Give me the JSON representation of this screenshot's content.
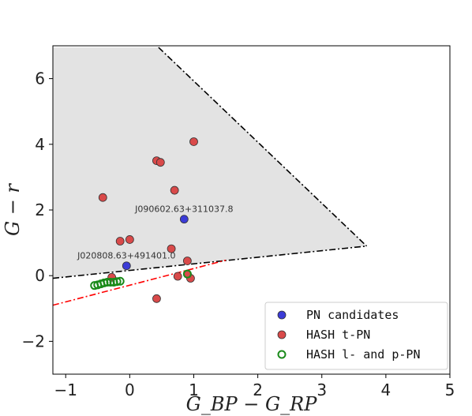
{
  "chart_data": {
    "type": "scatter",
    "xlabel": "G_BP − G_RP",
    "ylabel": "G − r",
    "xlim": [
      -1.2,
      5.0
    ],
    "ylim": [
      -3.0,
      7.0
    ],
    "xticks": [
      "−1",
      "0",
      "1",
      "2",
      "3",
      "4",
      "5"
    ],
    "yticks": [
      "−2",
      "0",
      "2",
      "4",
      "6"
    ],
    "xtick_values": [
      -1,
      0,
      1,
      2,
      3,
      4,
      5
    ],
    "ytick_values": [
      -2,
      0,
      2,
      4,
      6
    ],
    "grid": false,
    "legend_position": "bottom-right",
    "shaded_region": {
      "vertices": [
        [
          -1.2,
          6.95
        ],
        [
          0.45,
          6.95
        ],
        [
          3.7,
          0.9
        ],
        [
          -1.2,
          -0.08
        ]
      ],
      "color": "#e3e3e3"
    },
    "lines": [
      {
        "style": "dash-dot",
        "color": "#000000",
        "points": [
          [
            0.45,
            6.95
          ],
          [
            3.7,
            0.9
          ]
        ]
      },
      {
        "style": "dash-dot",
        "color": "#000000",
        "points": [
          [
            -1.2,
            -0.08
          ],
          [
            3.7,
            0.9
          ]
        ]
      },
      {
        "style": "dash-dot",
        "color": "#ff0000",
        "points": [
          [
            -1.2,
            -0.9
          ],
          [
            1.5,
            0.47
          ]
        ]
      }
    ],
    "series": [
      {
        "name": "PN candidates",
        "color": "#3b3bd6",
        "marker": "filled",
        "points": [
          [
            -0.05,
            0.3
          ],
          [
            0.85,
            1.72
          ]
        ]
      },
      {
        "name": "HASH t-PN",
        "color": "#d94a4a",
        "marker": "filled",
        "points": [
          [
            1.0,
            4.08
          ],
          [
            0.42,
            3.5
          ],
          [
            0.48,
            3.45
          ],
          [
            -0.42,
            2.38
          ],
          [
            0.7,
            2.6
          ],
          [
            -0.15,
            1.05
          ],
          [
            0.0,
            1.1
          ],
          [
            0.65,
            0.82
          ],
          [
            0.9,
            0.45
          ],
          [
            -0.28,
            -0.05
          ],
          [
            0.75,
            -0.02
          ],
          [
            0.95,
            -0.08
          ],
          [
            0.42,
            -0.7
          ],
          [
            0.9,
            0.05
          ]
        ]
      },
      {
        "name": "HASH l- and p-PN",
        "color": "#1a8a1a",
        "marker": "hollow",
        "points": [
          [
            -0.55,
            -0.3
          ],
          [
            -0.5,
            -0.28
          ],
          [
            -0.45,
            -0.25
          ],
          [
            -0.4,
            -0.22
          ],
          [
            -0.35,
            -0.2
          ],
          [
            -0.3,
            -0.2
          ],
          [
            -0.25,
            -0.2
          ],
          [
            -0.2,
            -0.18
          ],
          [
            -0.15,
            -0.17
          ],
          [
            0.9,
            0.05
          ]
        ]
      }
    ],
    "annotations": [
      {
        "text": "J090602.63+311037.8",
        "x": 0.85,
        "y": 1.72
      },
      {
        "text": "J020808.63+491401.0",
        "x": -0.05,
        "y": 0.3
      }
    ]
  }
}
